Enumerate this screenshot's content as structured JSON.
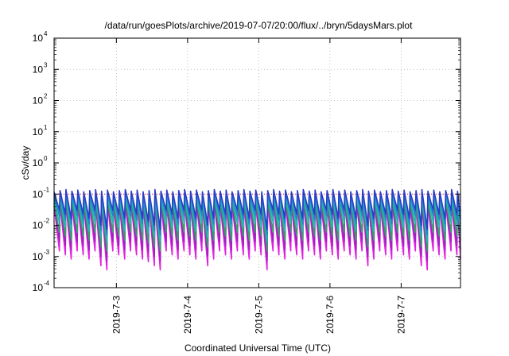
{
  "title": "/data/run/goesPlots/archive/2019-07-07/20:00/flux/../bryn/5daysMars.plot",
  "chart_data": {
    "type": "line",
    "title": "/data/run/goesPlots/archive/2019-07-07/20:00/flux/../bryn/5daysMars.plot",
    "xlabel": "Coordinated Universal Time (UTC)",
    "ylabel": "cSv/day",
    "yscale": "log",
    "ylim": [
      0.0001,
      10000
    ],
    "y_ticks": [
      {
        "base": "10",
        "exp": "4",
        "value": 10000
      },
      {
        "base": "10",
        "exp": "3",
        "value": 1000
      },
      {
        "base": "10",
        "exp": "2",
        "value": 100
      },
      {
        "base": "10",
        "exp": "1",
        "value": 10
      },
      {
        "base": "10",
        "exp": "0",
        "value": 1
      },
      {
        "base": "10",
        "exp": "-1",
        "value": 0.1
      },
      {
        "base": "10",
        "exp": "-2",
        "value": 0.01
      },
      {
        "base": "10",
        "exp": "-3",
        "value": 0.001
      },
      {
        "base": "10",
        "exp": "-4",
        "value": 0.0001
      }
    ],
    "xlim": [
      "2019-07-02 03:00",
      "2019-07-07 20:00"
    ],
    "x_ticks": [
      "2019-7-3",
      "2019-7-4",
      "2019-7-5",
      "2019-7-6",
      "2019-7-7"
    ],
    "grid": true,
    "threshold_line": {
      "value": 0.1,
      "color": "#d62020",
      "style": "dotted"
    },
    "sawtooth": {
      "peaks_per_day": 12,
      "series": [
        {
          "color": "#2b3cc8",
          "peak": 0.14,
          "trough": 0.03
        },
        {
          "color": "#1e88c8",
          "peak": 0.11,
          "trough": 0.02
        },
        {
          "color": "#20b8b8",
          "peak": 0.09,
          "trough": 0.012
        },
        {
          "color": "#33a06a",
          "peak": 0.07,
          "trough": 0.006
        },
        {
          "color": "#a020c0",
          "peak": 0.06,
          "trough": 0.003
        },
        {
          "color": "#e020e0",
          "peak": 0.05,
          "trough": 0.0015
        }
      ],
      "deep_dips": [
        "2019-07-02 18:00",
        "2019-07-03 09:00",
        "2019-07-03 12:00",
        "2019-07-04 05:00",
        "2019-07-05 01:00",
        "2019-07-06 11:00",
        "2019-07-07 06:00"
      ]
    }
  }
}
